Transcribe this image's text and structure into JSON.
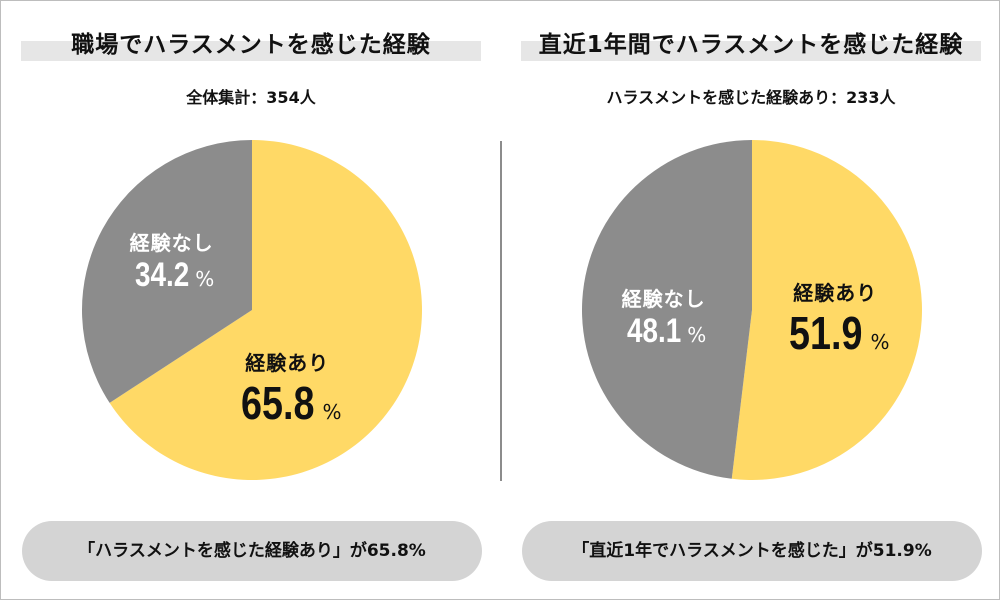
{
  "colors": {
    "yes": "#ffd966",
    "no": "#8c8c8c"
  },
  "chart_data": [
    {
      "type": "pie",
      "title": "職場でハラスメントを感じた経験",
      "subtitle": "全体集計：354人",
      "slices": [
        {
          "label": "経験あり",
          "value": 65.8,
          "display": "65.8",
          "unit": "%",
          "color": "#ffd966"
        },
        {
          "label": "経験なし",
          "value": 34.2,
          "display": "34.2",
          "unit": "%",
          "color": "#8c8c8c"
        }
      ],
      "footer": "「ハラスメントを感じた経験あり」が65.8%"
    },
    {
      "type": "pie",
      "title": "直近1年間でハラスメントを感じた経験",
      "subtitle": "ハラスメントを感じた経験あり：233人",
      "slices": [
        {
          "label": "経験あり",
          "value": 51.9,
          "display": "51.9",
          "unit": "%",
          "color": "#ffd966"
        },
        {
          "label": "経験なし",
          "value": 48.1,
          "display": "48.1",
          "unit": "%",
          "color": "#8c8c8c"
        }
      ],
      "footer": "「直近1年でハラスメントを感じた」が51.9%"
    }
  ]
}
